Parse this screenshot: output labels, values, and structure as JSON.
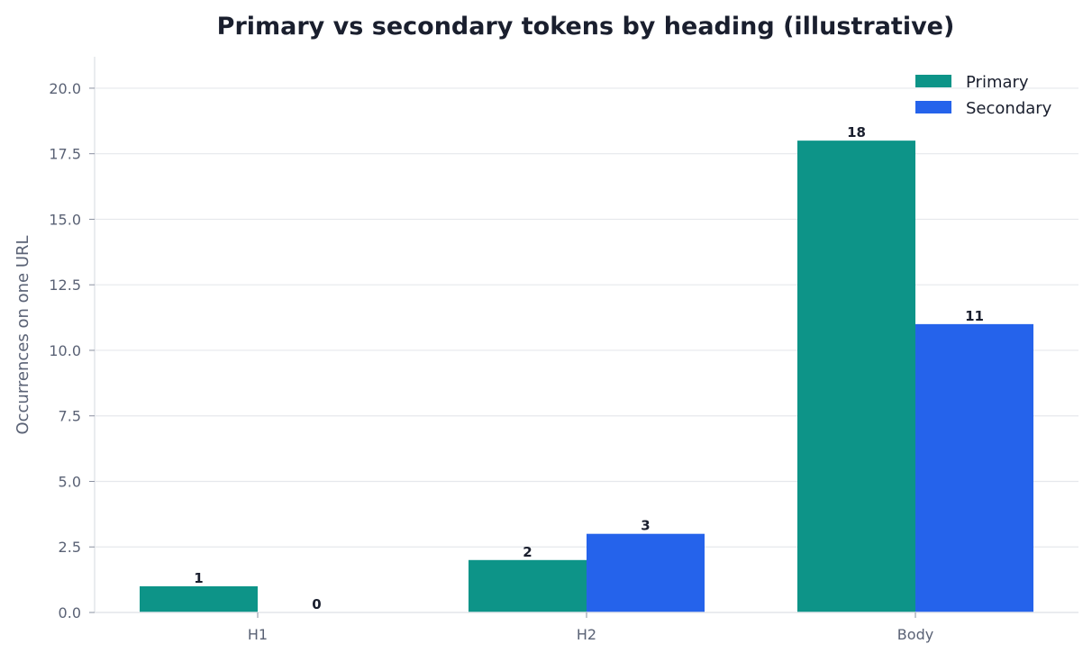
{
  "chart_data": {
    "type": "bar",
    "title": "Primary vs secondary tokens by heading (illustrative)",
    "xlabel": "",
    "ylabel": "Occurrences on one URL",
    "categories": [
      "H1",
      "H2",
      "Body"
    ],
    "series": [
      {
        "name": "Primary",
        "values": [
          1,
          2,
          18
        ],
        "color": "#0d9488"
      },
      {
        "name": "Secondary",
        "values": [
          0,
          3,
          11
        ],
        "color": "#2563eb"
      }
    ],
    "ylim": [
      0,
      21.2
    ],
    "yticks": [
      "0.0",
      "2.5",
      "5.0",
      "7.5",
      "10.0",
      "12.5",
      "15.0",
      "17.5",
      "20.0"
    ],
    "data_labels": [
      [
        "1",
        "2",
        "18"
      ],
      [
        "0",
        "3",
        "11"
      ]
    ],
    "grid": "horizontal",
    "legend_position": "top-right"
  }
}
